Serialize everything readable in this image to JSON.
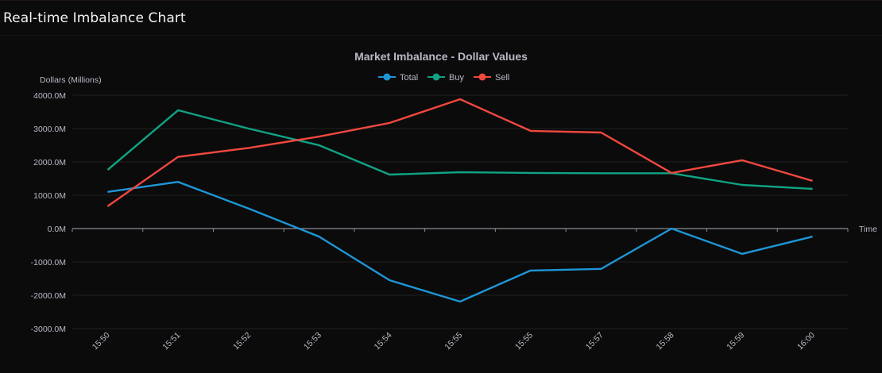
{
  "page": {
    "title": "Real-time Imbalance Chart"
  },
  "chart_data": {
    "type": "line",
    "title": "Market Imbalance - Dollar Values",
    "xlabel": "Time",
    "ylabel": "Dollars (Millions)",
    "categories": [
      "15:50",
      "15:51",
      "15:52",
      "15:53",
      "15:54",
      "15:55",
      "15:55",
      "15:57",
      "15:58",
      "15:59",
      "16:00"
    ],
    "ylim": [
      -3000,
      4000
    ],
    "yticks": [
      4000,
      3000,
      2000,
      1000,
      0,
      -1000,
      -2000,
      -3000
    ],
    "ytick_labels": [
      "4000.0M",
      "3000.0M",
      "2000.0M",
      "1000.0M",
      "0.0M",
      "-1000.0M",
      "-2000.0M",
      "-3000.0M"
    ],
    "grid": true,
    "legend_position": "top-center",
    "series": [
      {
        "name": "Total",
        "color": "#1e96d6",
        "values": [
          1100,
          1400,
          600,
          -240,
          -1550,
          -2190,
          -1260,
          -1210,
          0,
          -760,
          -240
        ]
      },
      {
        "name": "Buy",
        "color": "#10a383",
        "values": [
          1760,
          3550,
          3000,
          2500,
          1620,
          1690,
          1670,
          1660,
          1660,
          1310,
          1190
        ]
      },
      {
        "name": "Sell",
        "color": "#f0483f",
        "values": [
          670,
          2150,
          2420,
          2760,
          3170,
          3880,
          2930,
          2880,
          1670,
          2050,
          1430
        ]
      }
    ]
  }
}
